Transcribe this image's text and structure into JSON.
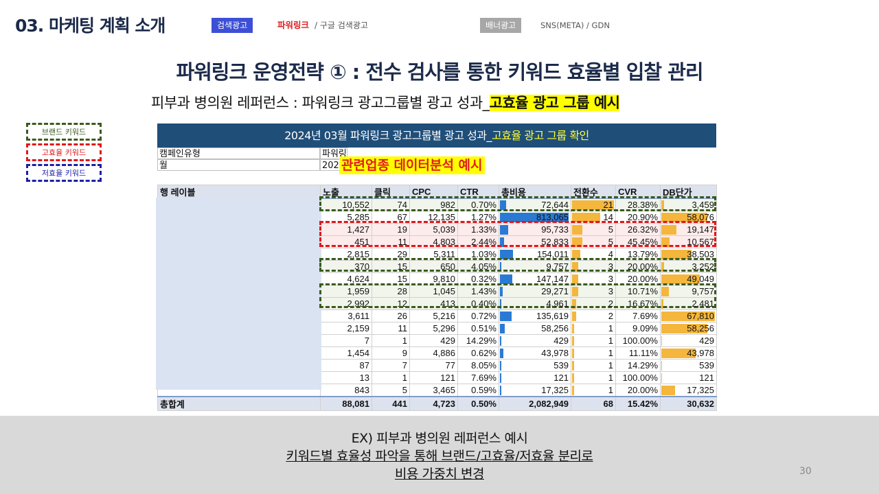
{
  "header": {
    "title": "03. 마케팅 계획 소개",
    "tag_search": "검색광고",
    "tag_powerlink": "파워링크",
    "tag_search_sub": "/ 구글 검색광고",
    "tag_banner": "배너광고",
    "tag_banner_sub": "SNS(META) / GDN"
  },
  "main_title": "파워링크 운영전략 ① : 전수 검사를 통한 키워드 효율별 입찰 관리",
  "subtitle": {
    "prefix": "피부과 병의원 레퍼런스 : 파워링크 광고그룹별 광고 성과_",
    "highlight": "고효율 광고 그룹 예시"
  },
  "legend": {
    "brand": "브랜드 키워드",
    "high": "고효율 키워드",
    "low": "저효율 키워드",
    "colors": {
      "brand": "#3a5a1e",
      "high": "#e0171b",
      "low": "#1d1ea8"
    }
  },
  "table_header": {
    "prefix": "2024년 03월 파워링크 광고그룹별 광고 성과_",
    "highlight": "고효율 광고 그룹 확인"
  },
  "filters": {
    "row1_label": "캠페인유형",
    "row1_value": "파워링크",
    "row2_label": "월",
    "row2_value": "202"
  },
  "overlay_label": "관련업종 데이터분석 예시",
  "columns": [
    "행 레이블",
    "노출",
    "클릭",
    "CPC",
    "CTR",
    "총비용",
    "전환수",
    "CVR",
    "DB단가"
  ],
  "rows": [
    {
      "impr": "10,552",
      "clicks": "74",
      "cpc": "982",
      "ctr": "0.70%",
      "cost": "72,644",
      "conv": "21",
      "cvr": "28.38%",
      "db": "3,459",
      "cost_v": 72644,
      "conv_v": 21,
      "db_v": 3459,
      "group": "brand"
    },
    {
      "impr": "5,285",
      "clicks": "67",
      "cpc": "12,135",
      "ctr": "1.27%",
      "cost": "813,065",
      "conv": "14",
      "cvr": "20.90%",
      "db": "58,076",
      "cost_v": 813065,
      "conv_v": 14,
      "db_v": 58076,
      "group": ""
    },
    {
      "impr": "1,427",
      "clicks": "19",
      "cpc": "5,039",
      "ctr": "1.33%",
      "cost": "95,733",
      "conv": "5",
      "cvr": "26.32%",
      "db": "19,147",
      "cost_v": 95733,
      "conv_v": 5,
      "db_v": 19147,
      "group": "high"
    },
    {
      "impr": "451",
      "clicks": "11",
      "cpc": "4,803",
      "ctr": "2.44%",
      "cost": "52,833",
      "conv": "5",
      "cvr": "45.45%",
      "db": "10,567",
      "cost_v": 52833,
      "conv_v": 5,
      "db_v": 10567,
      "group": "high"
    },
    {
      "impr": "2,815",
      "clicks": "29",
      "cpc": "5,311",
      "ctr": "1.03%",
      "cost": "154,011",
      "conv": "4",
      "cvr": "13.79%",
      "db": "38,503",
      "cost_v": 154011,
      "conv_v": 4,
      "db_v": 38503,
      "group": ""
    },
    {
      "impr": "370",
      "clicks": "15",
      "cpc": "650",
      "ctr": "4.05%",
      "cost": "9,757",
      "conv": "3",
      "cvr": "20.00%",
      "db": "3,252",
      "cost_v": 9757,
      "conv_v": 3,
      "db_v": 3252,
      "group": "brand"
    },
    {
      "impr": "4,624",
      "clicks": "15",
      "cpc": "9,810",
      "ctr": "0.32%",
      "cost": "147,147",
      "conv": "3",
      "cvr": "20.00%",
      "db": "49,049",
      "cost_v": 147147,
      "conv_v": 3,
      "db_v": 49049,
      "group": ""
    },
    {
      "impr": "1,959",
      "clicks": "28",
      "cpc": "1,045",
      "ctr": "1.43%",
      "cost": "29,271",
      "conv": "3",
      "cvr": "10.71%",
      "db": "9,757",
      "cost_v": 29271,
      "conv_v": 3,
      "db_v": 9757,
      "group": "brand"
    },
    {
      "impr": "2,992",
      "clicks": "12",
      "cpc": "413",
      "ctr": "0.40%",
      "cost": "4,961",
      "conv": "2",
      "cvr": "16.67%",
      "db": "2,481",
      "cost_v": 4961,
      "conv_v": 2,
      "db_v": 2481,
      "group": "brand"
    },
    {
      "impr": "3,611",
      "clicks": "26",
      "cpc": "5,216",
      "ctr": "0.72%",
      "cost": "135,619",
      "conv": "2",
      "cvr": "7.69%",
      "db": "67,810",
      "cost_v": 135619,
      "conv_v": 2,
      "db_v": 67810,
      "group": ""
    },
    {
      "impr": "2,159",
      "clicks": "11",
      "cpc": "5,296",
      "ctr": "0.51%",
      "cost": "58,256",
      "conv": "1",
      "cvr": "9.09%",
      "db": "58,256",
      "cost_v": 58256,
      "conv_v": 1,
      "db_v": 58256,
      "group": ""
    },
    {
      "impr": "7",
      "clicks": "1",
      "cpc": "429",
      "ctr": "14.29%",
      "cost": "429",
      "conv": "1",
      "cvr": "100.00%",
      "db": "429",
      "cost_v": 429,
      "conv_v": 1,
      "db_v": 429,
      "group": ""
    },
    {
      "impr": "1,454",
      "clicks": "9",
      "cpc": "4,886",
      "ctr": "0.62%",
      "cost": "43,978",
      "conv": "1",
      "cvr": "11.11%",
      "db": "43,978",
      "cost_v": 43978,
      "conv_v": 1,
      "db_v": 43978,
      "group": ""
    },
    {
      "impr": "87",
      "clicks": "7",
      "cpc": "77",
      "ctr": "8.05%",
      "cost": "539",
      "conv": "1",
      "cvr": "14.29%",
      "db": "539",
      "cost_v": 539,
      "conv_v": 1,
      "db_v": 539,
      "group": ""
    },
    {
      "impr": "13",
      "clicks": "1",
      "cpc": "121",
      "ctr": "7.69%",
      "cost": "121",
      "conv": "1",
      "cvr": "100.00%",
      "db": "121",
      "cost_v": 121,
      "conv_v": 1,
      "db_v": 121,
      "group": ""
    },
    {
      "impr": "843",
      "clicks": "5",
      "cpc": "3,465",
      "ctr": "0.59%",
      "cost": "17,325",
      "conv": "1",
      "cvr": "20.00%",
      "db": "17,325",
      "cost_v": 17325,
      "conv_v": 1,
      "db_v": 17325,
      "group": ""
    }
  ],
  "total": {
    "label": "총합계",
    "impr": "88,081",
    "clicks": "441",
    "cpc": "4,723",
    "ctr": "0.50%",
    "cost": "2,082,949",
    "conv": "68",
    "cvr": "15.42%",
    "db": "30,632"
  },
  "footer": {
    "line1": "EX) 피부과 병의원 레퍼런스 예시",
    "line2": "키워드별 효율성 파악을 통해 브랜드/고효율/저효율 분리로",
    "line3": "비용 가중치 변경"
  },
  "page_number": "30"
}
